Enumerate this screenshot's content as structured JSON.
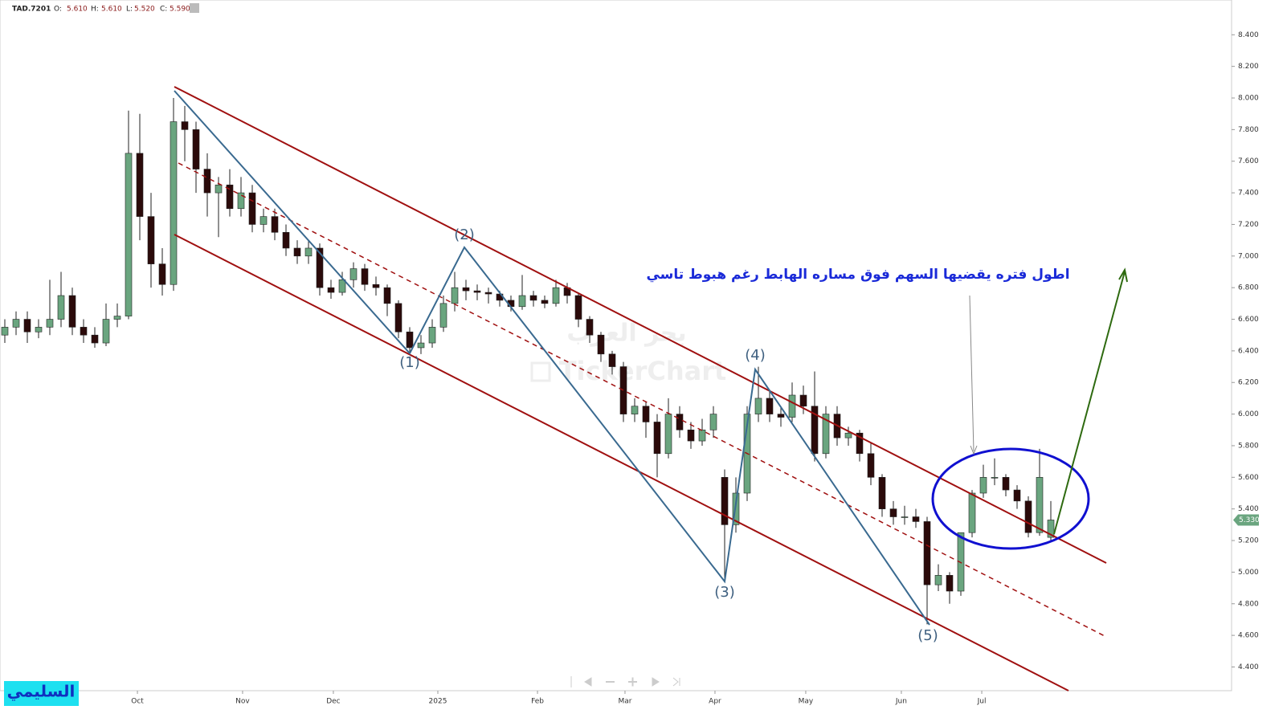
{
  "header": {
    "symbol": "TAD.7201",
    "ohlc": [
      {
        "label": "O:",
        "value": "5.610"
      },
      {
        "label": "H:",
        "value": "5.610"
      },
      {
        "label": "L:",
        "value": "5.520"
      },
      {
        "label": "C:",
        "value": "5.590"
      }
    ]
  },
  "watermark": {
    "arabic": "بحر العرب",
    "brand": "TickerChart"
  },
  "author": "السليمي",
  "annotation": "اطول فتره يقضيها السهم فوق مساره الهابط رغم هبوط تاسي",
  "wave_labels": [
    "(1)",
    "(2)",
    "(3)",
    "(4)",
    "(5)"
  ],
  "chart_data": {
    "type": "candlestick",
    "up_color": "#6aa57f",
    "down_color": "#2b0a0a",
    "open": [
      6.5,
      6.55,
      6.6,
      6.52,
      6.55,
      6.6,
      6.75,
      6.55,
      6.5,
      6.45,
      6.6,
      6.62,
      7.65,
      7.25,
      6.95,
      6.82,
      7.85,
      7.8,
      7.55,
      7.4,
      7.45,
      7.3,
      7.4,
      7.2,
      7.25,
      7.15,
      7.05,
      7.0,
      7.05,
      6.8,
      6.77,
      6.85,
      6.92,
      6.82,
      6.8,
      6.7,
      6.52,
      6.42,
      6.45,
      6.55,
      6.7,
      6.8,
      6.78,
      6.77,
      6.76,
      6.72,
      6.68,
      6.75,
      6.72,
      6.7,
      6.8,
      6.75,
      6.6,
      6.5,
      6.38,
      6.3,
      6.0,
      6.05,
      5.95,
      5.75,
      6.0,
      5.9,
      5.83,
      5.9,
      5.6,
      5.3,
      5.5,
      6.0,
      6.1,
      6.0,
      5.98,
      6.12,
      6.05,
      5.75,
      6.0,
      5.85,
      5.88,
      5.75,
      5.6,
      5.4,
      5.35,
      5.35,
      5.32,
      4.92,
      4.98,
      4.88,
      5.25,
      5.5,
      5.6,
      5.6,
      5.52,
      5.45,
      5.25,
      5.22
    ],
    "high": [
      6.6,
      6.65,
      6.65,
      6.6,
      6.85,
      6.9,
      6.8,
      6.6,
      6.55,
      6.7,
      6.7,
      7.92,
      7.9,
      7.4,
      7.05,
      8.0,
      7.95,
      7.85,
      7.65,
      7.5,
      7.55,
      7.5,
      7.45,
      7.3,
      7.3,
      7.2,
      7.1,
      7.1,
      7.08,
      6.85,
      6.9,
      6.96,
      6.95,
      6.87,
      6.82,
      6.72,
      6.55,
      6.5,
      6.6,
      6.75,
      6.9,
      6.85,
      6.82,
      6.8,
      6.78,
      6.75,
      6.88,
      6.78,
      6.75,
      6.85,
      6.83,
      6.77,
      6.62,
      6.52,
      6.4,
      6.33,
      6.1,
      6.08,
      6.0,
      6.1,
      6.05,
      5.95,
      5.97,
      6.05,
      5.65,
      5.6,
      6.05,
      6.3,
      6.15,
      6.05,
      6.2,
      6.18,
      6.27,
      6.05,
      6.05,
      5.92,
      5.9,
      5.82,
      5.62,
      5.45,
      5.42,
      5.4,
      5.35,
      5.05,
      5.0,
      5.25,
      5.52,
      5.68,
      5.72,
      5.62,
      5.55,
      5.48,
      5.78,
      5.45
    ],
    "low": [
      6.45,
      6.5,
      6.45,
      6.48,
      6.5,
      6.55,
      6.5,
      6.45,
      6.42,
      6.43,
      6.55,
      6.6,
      7.1,
      6.8,
      6.75,
      6.78,
      7.6,
      7.4,
      7.25,
      7.12,
      7.25,
      7.25,
      7.15,
      7.15,
      7.1,
      7.0,
      6.95,
      6.95,
      6.75,
      6.73,
      6.75,
      6.8,
      6.78,
      6.75,
      6.62,
      6.48,
      6.38,
      6.38,
      6.42,
      6.52,
      6.65,
      6.72,
      6.72,
      6.7,
      6.68,
      6.65,
      6.66,
      6.68,
      6.67,
      6.68,
      6.7,
      6.55,
      6.45,
      6.33,
      6.25,
      5.95,
      5.95,
      5.85,
      5.6,
      5.72,
      5.85,
      5.78,
      5.8,
      5.85,
      4.95,
      5.25,
      5.45,
      5.95,
      5.95,
      5.92,
      5.95,
      6.0,
      5.7,
      5.72,
      5.8,
      5.8,
      5.7,
      5.55,
      5.35,
      5.3,
      5.3,
      5.28,
      4.67,
      4.88,
      4.8,
      4.85,
      5.22,
      5.47,
      5.55,
      5.48,
      5.4,
      5.22,
      5.23,
      5.2
    ],
    "close": [
      6.55,
      6.6,
      6.52,
      6.55,
      6.6,
      6.75,
      6.55,
      6.5,
      6.45,
      6.6,
      6.62,
      7.65,
      7.25,
      6.95,
      6.82,
      7.85,
      7.8,
      7.55,
      7.4,
      7.45,
      7.3,
      7.4,
      7.2,
      7.25,
      7.15,
      7.05,
      7.0,
      7.05,
      6.8,
      6.77,
      6.85,
      6.92,
      6.82,
      6.8,
      6.7,
      6.52,
      6.42,
      6.45,
      6.55,
      6.7,
      6.8,
      6.78,
      6.77,
      6.76,
      6.72,
      6.68,
      6.75,
      6.72,
      6.7,
      6.8,
      6.75,
      6.6,
      6.5,
      6.38,
      6.3,
      6.0,
      6.05,
      5.95,
      5.75,
      6.0,
      5.9,
      5.83,
      5.9,
      6.0,
      5.3,
      5.5,
      6.0,
      6.1,
      6.0,
      5.98,
      6.12,
      6.05,
      5.75,
      6.0,
      5.85,
      5.88,
      5.75,
      5.6,
      5.4,
      5.35,
      5.35,
      5.32,
      4.92,
      4.98,
      4.88,
      5.25,
      5.5,
      5.6,
      5.6,
      5.52,
      5.45,
      5.25,
      5.6,
      5.33
    ],
    "xticks": [
      {
        "value": 11.79,
        "label": "Oct"
      },
      {
        "value": 21.14,
        "label": "Nov"
      },
      {
        "value": 29.21,
        "label": "Dec"
      },
      {
        "value": 38.5,
        "label": "2025"
      },
      {
        "value": 47.36,
        "label": "Feb"
      },
      {
        "value": 55.14,
        "label": "Mar"
      },
      {
        "value": 63.14,
        "label": "Apr"
      },
      {
        "value": 71.21,
        "label": "May"
      },
      {
        "value": 79.71,
        "label": "Jun"
      },
      {
        "value": 86.86,
        "label": "Jul"
      }
    ],
    "ylim": [
      4.25,
      8.62
    ],
    "yticks": [
      {
        "value": 4.4,
        "label": "4.400"
      },
      {
        "value": 4.6,
        "label": "4.600"
      },
      {
        "value": 4.8,
        "label": "4.800"
      },
      {
        "value": 5.0,
        "label": "5.000"
      },
      {
        "value": 5.2,
        "label": "5.200"
      },
      {
        "value": 5.4,
        "label": "5.400"
      },
      {
        "value": 5.6,
        "label": "5.600"
      },
      {
        "value": 5.8,
        "label": "5.800"
      },
      {
        "value": 6.0,
        "label": "6.000"
      },
      {
        "value": 6.2,
        "label": "6.200"
      },
      {
        "value": 6.4,
        "label": "6.400"
      },
      {
        "value": 6.6,
        "label": "6.600"
      },
      {
        "value": 6.8,
        "label": "6.800"
      },
      {
        "value": 7.0,
        "label": "7.000"
      },
      {
        "value": 7.2,
        "label": "7.200"
      },
      {
        "value": 7.4,
        "label": "7.400"
      },
      {
        "value": 7.6,
        "label": "7.600"
      },
      {
        "value": 7.8,
        "label": "7.800"
      },
      {
        "value": 8.0,
        "label": "8.000"
      },
      {
        "value": 8.2,
        "label": "8.200"
      },
      {
        "value": 8.4,
        "label": "8.400"
      }
    ],
    "last_price": {
      "value": 5.33,
      "label": "5.330"
    },
    "last_color": "#6aa57f"
  }
}
